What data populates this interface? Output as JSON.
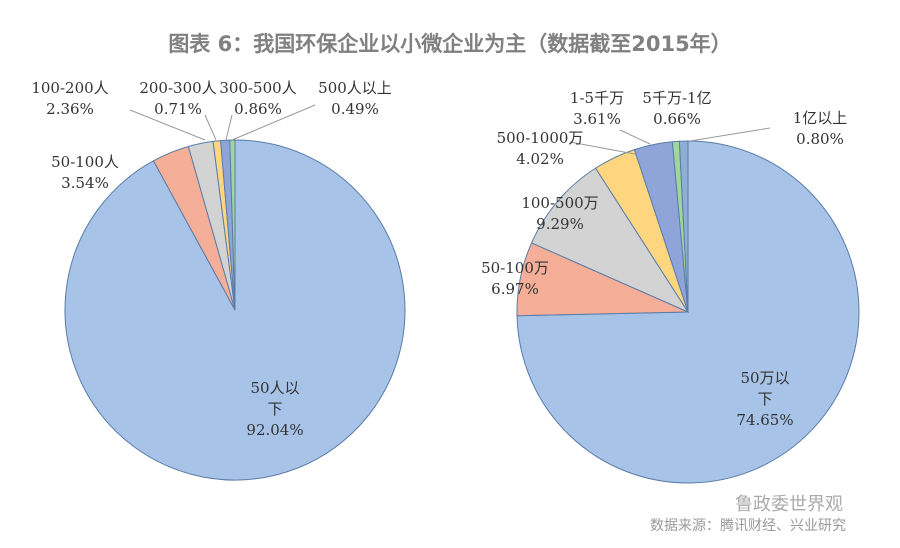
{
  "title": "图表 6：我国环保企业以小微企业为主（数据截至2015年）",
  "chart_data": [
    {
      "type": "pie",
      "start": "12 o'clock, clockwise",
      "categories": [
        "50人以下",
        "50-100人",
        "100-200人",
        "200-300人",
        "300-500人",
        "500人以上"
      ],
      "labels": [
        "50人以下",
        "50-100人",
        "100-200人",
        "200-300人",
        "300-500人",
        "500人以上"
      ],
      "display_labels": [
        "50人以\n下",
        "50-100人",
        "100-200人",
        "200-300人",
        "300-500人",
        "500人以上"
      ],
      "values": [
        92.04,
        3.54,
        2.36,
        0.71,
        0.86,
        0.49
      ],
      "value_labels": [
        "92.04%",
        "3.54%",
        "2.36%",
        "0.71%",
        "0.86%",
        "0.49%"
      ],
      "colors": [
        "#a7c3e8",
        "#f5ae97",
        "#d3d3d3",
        "#fed67f",
        "#8fa5d9",
        "#9fd69a"
      ]
    },
    {
      "type": "pie",
      "start": "12 o'clock, clockwise",
      "categories": [
        "50万以下",
        "50-100万",
        "100-500万",
        "500-1000万",
        "1-5千万",
        "5千万-1亿",
        "1亿以上"
      ],
      "display_labels": [
        "50万以\n下",
        "50-100万",
        "100-500万",
        "500-1000万",
        "1-5千万",
        "5千万-1亿",
        "1亿以上"
      ],
      "values": [
        74.65,
        6.97,
        9.29,
        4.02,
        3.61,
        0.66,
        0.8
      ],
      "value_labels": [
        "74.65%",
        "6.97%",
        "9.29%",
        "4.02%",
        "3.61%",
        "0.66%",
        "0.80%"
      ],
      "colors": [
        "#a7c3e8",
        "#f5ae97",
        "#d3d3d3",
        "#fed67f",
        "#8fa5d9",
        "#9fd69a",
        "#8eaed4"
      ]
    }
  ],
  "watermark": "鲁政委世界观",
  "source": "数据来源：腾讯财经、兴业研究"
}
